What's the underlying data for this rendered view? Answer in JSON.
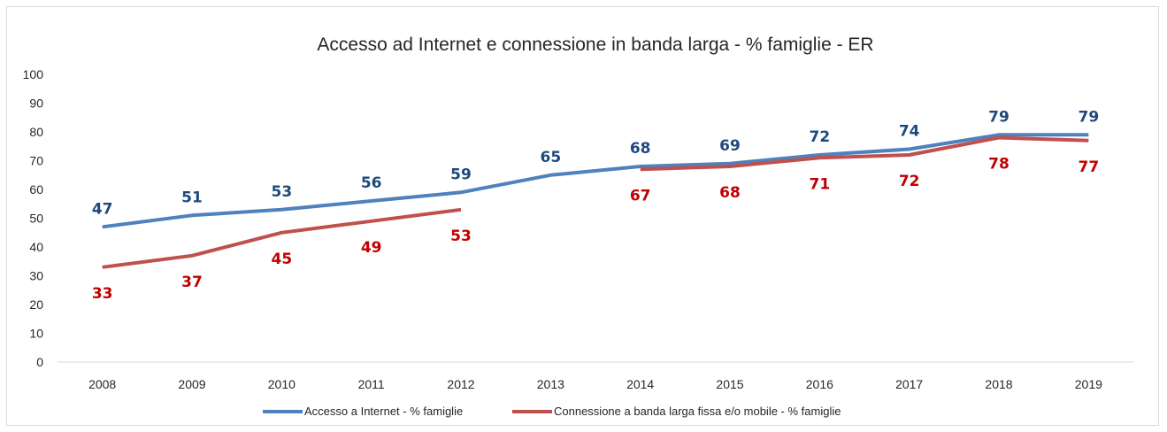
{
  "chart_data": {
    "type": "line",
    "title": "Accesso ad Internet e connessione in banda larga - % famiglie - ER",
    "xlabel": "",
    "ylabel": "",
    "categories": [
      "2008",
      "2009",
      "2010",
      "2011",
      "2012",
      "2013",
      "2014",
      "2015",
      "2016",
      "2017",
      "2018",
      "2019"
    ],
    "ylim": [
      0,
      100
    ],
    "yticks": [
      0,
      10,
      20,
      30,
      40,
      50,
      60,
      70,
      80,
      90,
      100
    ],
    "grid": false,
    "legend_position": "bottom",
    "series": [
      {
        "name": "Accesso a Internet - % famiglie",
        "color": "#4f81bd",
        "label_color": "#1f497d",
        "values": [
          47,
          51,
          53,
          56,
          59,
          65,
          68,
          69,
          72,
          74,
          79,
          79
        ],
        "label_position": "above"
      },
      {
        "name": "Connessione a banda larga fissa e/o mobile - % famiglie",
        "color": "#c0504d",
        "label_color": "#c00000",
        "values": [
          33,
          37,
          45,
          49,
          53,
          null,
          67,
          68,
          71,
          72,
          78,
          77
        ],
        "label_position": "below"
      }
    ]
  }
}
